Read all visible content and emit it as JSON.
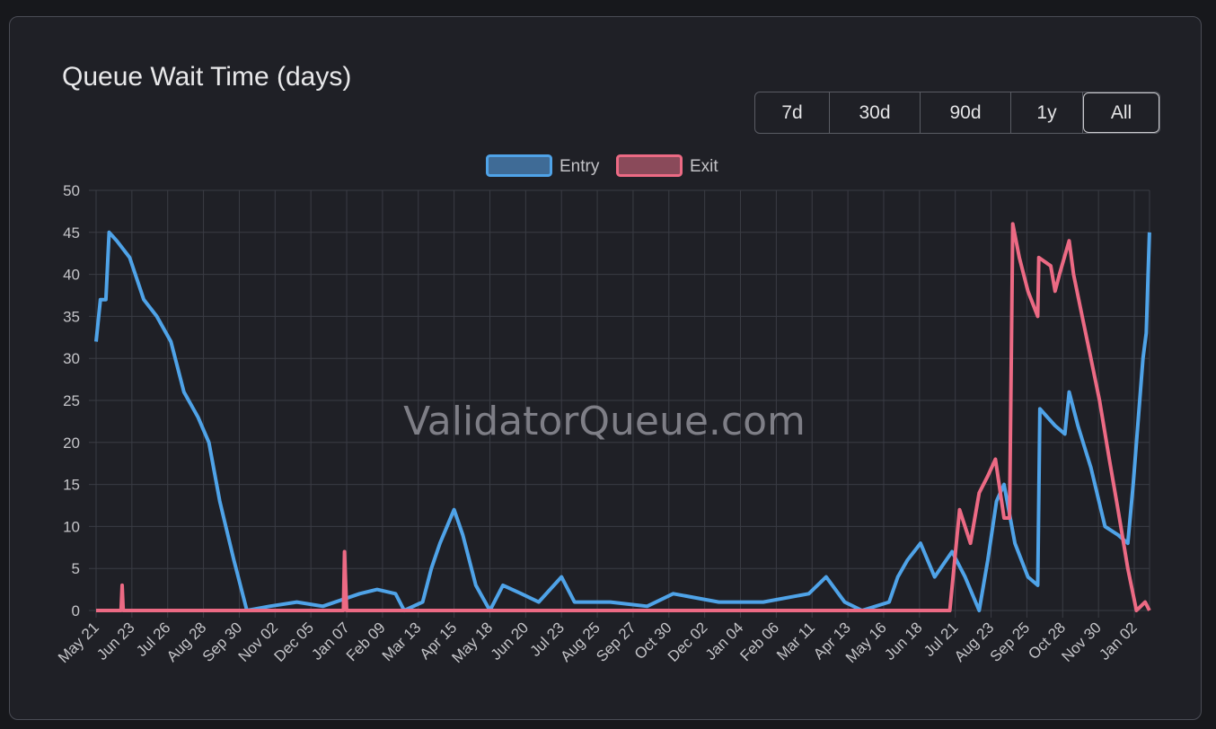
{
  "card": {
    "title": "Queue Wait Time (days)",
    "range_buttons": [
      {
        "label": "7d",
        "active": false
      },
      {
        "label": "30d",
        "active": false
      },
      {
        "label": "90d",
        "active": false
      },
      {
        "label": "1y",
        "active": false
      },
      {
        "label": "All",
        "active": true
      }
    ],
    "watermark": "ValidatorQueue.com"
  },
  "chart_data": {
    "type": "line",
    "title": "Queue Wait Time (days)",
    "xlabel": "",
    "ylabel": "",
    "x_unit": "days since first tick (May 21)",
    "ylim": [
      0,
      50
    ],
    "yticks": [
      0,
      5,
      10,
      15,
      20,
      25,
      30,
      35,
      40,
      45,
      50
    ],
    "grid": true,
    "legend_position": "top-center",
    "xtick_labels": [
      "May 21",
      "Jun 23",
      "Jul 26",
      "Aug 28",
      "Sep 30",
      "Nov 02",
      "Dec 05",
      "Jan 07",
      "Feb 09",
      "Mar 13",
      "Apr 15",
      "May 18",
      "Jun 20",
      "Jul 23",
      "Aug 25",
      "Sep 27",
      "Oct 30",
      "Dec 02",
      "Jan 04",
      "Feb 06",
      "Mar 11",
      "Apr 13",
      "May 16",
      "Jun 18",
      "Jul 21",
      "Aug 23",
      "Sep 25",
      "Oct 28",
      "Nov 30",
      "Jan 02"
    ],
    "xtick_spacing_days": 33,
    "xlim": [
      0,
      971
    ],
    "series": [
      {
        "name": "Entry",
        "color": "#4fa3e8",
        "fill": "#3f6b96",
        "points": [
          [
            0,
            32
          ],
          [
            4,
            37
          ],
          [
            9,
            37
          ],
          [
            12,
            45
          ],
          [
            19,
            44
          ],
          [
            31,
            42
          ],
          [
            44,
            37
          ],
          [
            56,
            35
          ],
          [
            69,
            32
          ],
          [
            81,
            26
          ],
          [
            94,
            23
          ],
          [
            104,
            20
          ],
          [
            114,
            13
          ],
          [
            127,
            6
          ],
          [
            139,
            0
          ],
          [
            160,
            0.5
          ],
          [
            185,
            1
          ],
          [
            209,
            0.5
          ],
          [
            243,
            2
          ],
          [
            259,
            2.5
          ],
          [
            276,
            2
          ],
          [
            284,
            0
          ],
          [
            301,
            1
          ],
          [
            309,
            5
          ],
          [
            317,
            8
          ],
          [
            330,
            12
          ],
          [
            338,
            9
          ],
          [
            350,
            3
          ],
          [
            363,
            0
          ],
          [
            375,
            3
          ],
          [
            392,
            2
          ],
          [
            408,
            1
          ],
          [
            429,
            4
          ],
          [
            441,
            1
          ],
          [
            474,
            1
          ],
          [
            508,
            0.5
          ],
          [
            532,
            2
          ],
          [
            574,
            1
          ],
          [
            615,
            1
          ],
          [
            657,
            2
          ],
          [
            673,
            4
          ],
          [
            690,
            1
          ],
          [
            706,
            0
          ],
          [
            731,
            1
          ],
          [
            739,
            4
          ],
          [
            748,
            6
          ],
          [
            760,
            8
          ],
          [
            773,
            4
          ],
          [
            789,
            7
          ],
          [
            801,
            4
          ],
          [
            814,
            0
          ],
          [
            822,
            6
          ],
          [
            830,
            13
          ],
          [
            837,
            15
          ],
          [
            847,
            8
          ],
          [
            859,
            4
          ],
          [
            868,
            3
          ],
          [
            870,
            24
          ],
          [
            884,
            22
          ],
          [
            893,
            21
          ],
          [
            897,
            26
          ],
          [
            905,
            22
          ],
          [
            917,
            17
          ],
          [
            930,
            10
          ],
          [
            942,
            9
          ],
          [
            951,
            8
          ],
          [
            956,
            15
          ],
          [
            965,
            30
          ],
          [
            968,
            33
          ],
          [
            971,
            45
          ]
        ]
      },
      {
        "name": "Exit",
        "color": "#ec6a84",
        "fill": "#8a4a5a",
        "points": [
          [
            0,
            0
          ],
          [
            23,
            0
          ],
          [
            24,
            3
          ],
          [
            25,
            0
          ],
          [
            228,
            0
          ],
          [
            229,
            7
          ],
          [
            231,
            0
          ],
          [
            787,
            0
          ],
          [
            796,
            12
          ],
          [
            806,
            8
          ],
          [
            814,
            14
          ],
          [
            822,
            16
          ],
          [
            829,
            18
          ],
          [
            837,
            11
          ],
          [
            842,
            11
          ],
          [
            845,
            46
          ],
          [
            851,
            42
          ],
          [
            859,
            38
          ],
          [
            868,
            35
          ],
          [
            869,
            42
          ],
          [
            880,
            41
          ],
          [
            884,
            38
          ],
          [
            888,
            40
          ],
          [
            897,
            44
          ],
          [
            901,
            40
          ],
          [
            909,
            35
          ],
          [
            917,
            30
          ],
          [
            925,
            25
          ],
          [
            934,
            18
          ],
          [
            942,
            12
          ],
          [
            951,
            5
          ],
          [
            959,
            0
          ],
          [
            967,
            1
          ],
          [
            971,
            0
          ]
        ]
      }
    ]
  }
}
